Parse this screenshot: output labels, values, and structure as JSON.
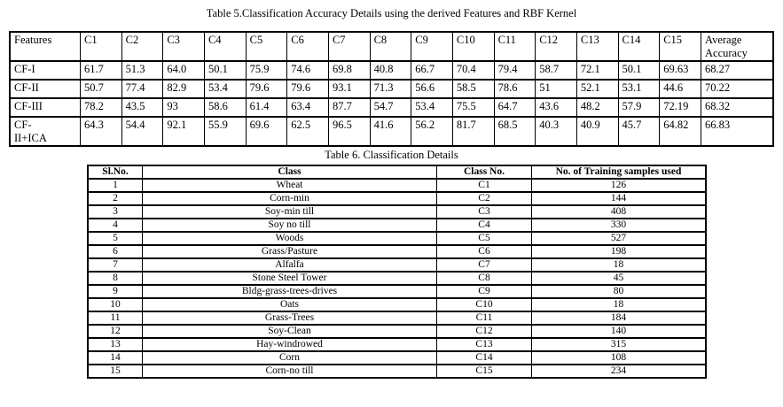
{
  "table5": {
    "title": "Table 5.Classification Accuracy Details using the derived Features and RBF Kernel",
    "headers": [
      "Features",
      "C1",
      "C2",
      "C3",
      "C4",
      "C5",
      "C6",
      "C7",
      "C8",
      "C9",
      "C10",
      "C11",
      "C12",
      "C13",
      "C14",
      "C15",
      "Average Accuracy"
    ],
    "rows": [
      {
        "feature": "CF-I",
        "values": [
          "61.7",
          "51.3",
          "64.0",
          "50.1",
          "75.9",
          "74.6",
          "69.8",
          "40.8",
          "66.7",
          "70.4",
          "79.4",
          "58.7",
          "72.1",
          "50.1",
          "69.63",
          "68.27"
        ]
      },
      {
        "feature": "CF-II",
        "values": [
          "50.7",
          "77.4",
          "82.9",
          "53.4",
          "79.6",
          "79.6",
          "93.1",
          "71.3",
          "56.6",
          "58.5",
          "78.6",
          "51",
          "52.1",
          "53.1",
          "44.6",
          "70.22"
        ]
      },
      {
        "feature": "CF-III",
        "values": [
          "78.2",
          "43.5",
          "93",
          "58.6",
          "61.4",
          "63.4",
          "87.7",
          "54.7",
          "53.4",
          "75.5",
          "64.7",
          "43.6",
          "48.2",
          "57.9",
          "72.19",
          "68.32"
        ]
      },
      {
        "feature": "CF-\nII+ICA",
        "values": [
          "64.3",
          "54.4",
          "92.1",
          "55.9",
          "69.6",
          "62.5",
          "96.5",
          "41.6",
          "56.2",
          "81.7",
          "68.5",
          "40.3",
          "40.9",
          "45.7",
          "64.82",
          "66.83"
        ]
      }
    ]
  },
  "table6": {
    "title": "Table 6. Classification Details",
    "headers": [
      "Sl.No.",
      "Class",
      "Class No.",
      "No. of Training samples used"
    ],
    "rows": [
      {
        "sl_no": "1",
        "class": "Wheat",
        "class_no": "C1",
        "samples": "126"
      },
      {
        "sl_no": "2",
        "class": "Corn-min",
        "class_no": "C2",
        "samples": "144"
      },
      {
        "sl_no": "3",
        "class": "Soy-min till",
        "class_no": "C3",
        "samples": "408"
      },
      {
        "sl_no": "4",
        "class": "Soy no till",
        "class_no": "C4",
        "samples": "330"
      },
      {
        "sl_no": "5",
        "class": "Woods",
        "class_no": "C5",
        "samples": "527"
      },
      {
        "sl_no": "6",
        "class": "Grass/Pasture",
        "class_no": "C6",
        "samples": "198"
      },
      {
        "sl_no": "7",
        "class": "Alfalfa",
        "class_no": "C7",
        "samples": "18"
      },
      {
        "sl_no": "8",
        "class": "Stone Steel Tower",
        "class_no": "C8",
        "samples": "45"
      },
      {
        "sl_no": "9",
        "class": "Bldg-grass-trees-drives",
        "class_no": "C9",
        "samples": "80"
      },
      {
        "sl_no": "10",
        "class": "Oats",
        "class_no": "C10",
        "samples": "18"
      },
      {
        "sl_no": "11",
        "class": "Grass-Trees",
        "class_no": "C11",
        "samples": "184"
      },
      {
        "sl_no": "12",
        "class": "Soy-Clean",
        "class_no": "C12",
        "samples": "140"
      },
      {
        "sl_no": "13",
        "class": "Hay-windrowed",
        "class_no": "C13",
        "samples": "315"
      },
      {
        "sl_no": "14",
        "class": "Corn",
        "class_no": "C14",
        "samples": "108"
      },
      {
        "sl_no": "15",
        "class": "Corn-no till",
        "class_no": "C15",
        "samples": "234"
      }
    ]
  }
}
